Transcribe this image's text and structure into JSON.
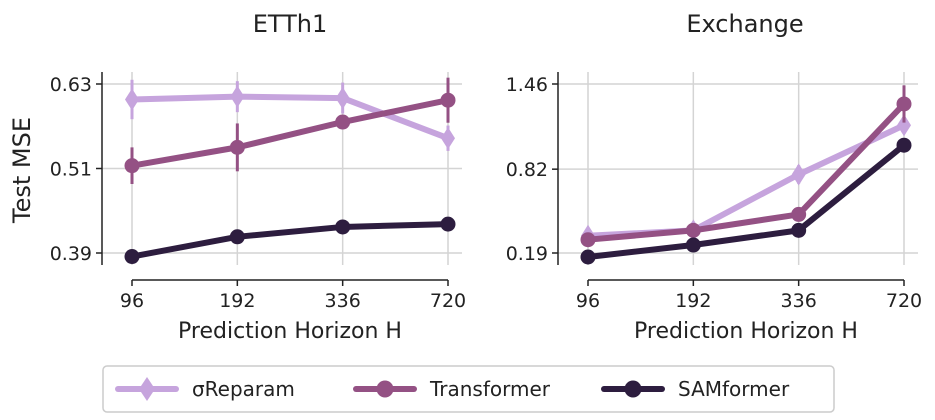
{
  "figure": {
    "ylabel": "Test MSE"
  },
  "legend": {
    "placement": "bottom-center"
  },
  "series_styles": [
    {
      "name": "σReparam",
      "color": "#c6a4dd",
      "marker": "diamond"
    },
    {
      "name": "Transformer",
      "color": "#945184",
      "marker": "circle"
    },
    {
      "name": "SAMformer",
      "color": "#2d1d3f",
      "marker": "circle"
    }
  ],
  "chart_data": [
    {
      "type": "line",
      "title": "ETTh1",
      "xlabel": "Prediction Horizon H",
      "ylabel": "Test MSE",
      "categories": [
        "96",
        "192",
        "336",
        "720"
      ],
      "yticks": [
        "0.39",
        "0.51",
        "0.63"
      ],
      "ylim": [
        0.39,
        0.63
      ],
      "grid": true,
      "series": [
        {
          "name": "σReparam",
          "values": [
            0.608,
            0.612,
            0.61,
            0.553
          ],
          "err": [
            0.028,
            0.022,
            0.022,
            0.018
          ]
        },
        {
          "name": "Transformer",
          "values": [
            0.514,
            0.54,
            0.576,
            0.607
          ],
          "err": [
            0.026,
            0.034,
            0.01,
            0.032
          ]
        },
        {
          "name": "SAMformer",
          "values": [
            0.385,
            0.413,
            0.427,
            0.431
          ],
          "err": [
            0,
            0,
            0,
            0
          ]
        }
      ]
    },
    {
      "type": "line",
      "title": "Exchange",
      "xlabel": "Prediction Horizon H",
      "ylabel": "",
      "categories": [
        "96",
        "192",
        "336",
        "720"
      ],
      "yticks": [
        "0.19",
        "0.82",
        "1.46"
      ],
      "ylim": [
        0.19,
        1.46
      ],
      "grid": true,
      "series": [
        {
          "name": "σReparam",
          "values": [
            0.32,
            0.36,
            0.78,
            1.15
          ],
          "err": [
            0.03,
            0.03,
            0.07,
            0.05
          ]
        },
        {
          "name": "Transformer",
          "values": [
            0.29,
            0.36,
            0.48,
            1.31
          ],
          "err": [
            0,
            0,
            0,
            0.14
          ]
        },
        {
          "name": "SAMformer",
          "values": [
            0.16,
            0.25,
            0.36,
            1.0
          ],
          "err": [
            0,
            0,
            0,
            0
          ]
        }
      ]
    }
  ]
}
